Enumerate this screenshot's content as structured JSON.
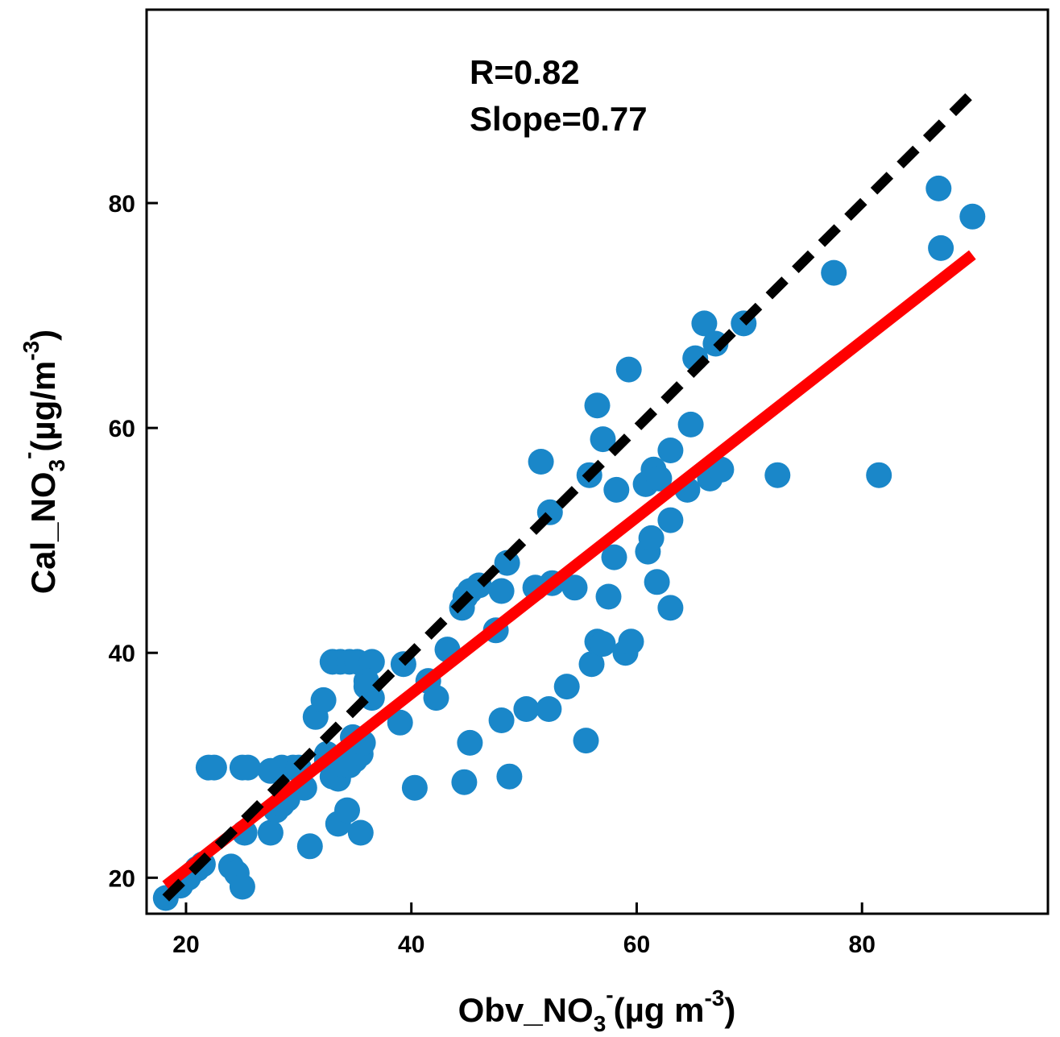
{
  "chart_data": {
    "type": "scatter",
    "xlim": [
      16.5,
      96.5
    ],
    "ylim": [
      16.8,
      97.2
    ],
    "x_ticks": [
      20,
      40,
      60,
      80
    ],
    "y_ticks": [
      20,
      40,
      60,
      80
    ],
    "x_tick_labels": [
      "20",
      "40",
      "60",
      "80"
    ],
    "y_tick_labels": [
      "20",
      "40",
      "60",
      "80"
    ],
    "xlabel": {
      "main": "Obv_NO",
      "sub": "3",
      "sup": "-",
      "tail_open": "(µg m",
      "tail_sup": "-3",
      "tail_close": ")"
    },
    "ylabel": {
      "main": "Cal_NO",
      "sub": "3",
      "sup": "-",
      "tail_open": "(µg/m",
      "tail_sup": "-3",
      "tail_close": ")"
    },
    "annotations": [
      "R=0.82",
      "Slope=0.77"
    ],
    "grid": false,
    "legend": "none",
    "colors": {
      "points": "#1a87c9",
      "fit": "#ff0000",
      "one_to_one": "#000000"
    },
    "series": [
      {
        "kind": "points",
        "points": [
          [
            18.2,
            18.2
          ],
          [
            19.5,
            19.3
          ],
          [
            20.2,
            20.0
          ],
          [
            21.0,
            20.8
          ],
          [
            21.5,
            21.2
          ],
          [
            22.0,
            29.8
          ],
          [
            22.5,
            29.8
          ],
          [
            24.0,
            21.0
          ],
          [
            24.5,
            20.4
          ],
          [
            25.0,
            19.2
          ],
          [
            25.0,
            29.8
          ],
          [
            25.5,
            29.8
          ],
          [
            25.2,
            24.0
          ],
          [
            27.5,
            24.0
          ],
          [
            27.5,
            29.5
          ],
          [
            28.5,
            29.8
          ],
          [
            29.5,
            29.8
          ],
          [
            30.0,
            29.8
          ],
          [
            28.0,
            26.0
          ],
          [
            28.5,
            26.5
          ],
          [
            29.0,
            27.0
          ],
          [
            30.5,
            28.0
          ],
          [
            31.0,
            22.8
          ],
          [
            31.5,
            34.3
          ],
          [
            32.2,
            35.8
          ],
          [
            32.5,
            30.5
          ],
          [
            32.5,
            31.0
          ],
          [
            33.0,
            29.0
          ],
          [
            33.5,
            28.8
          ],
          [
            34.0,
            30.0
          ],
          [
            34.5,
            30.0
          ],
          [
            35.0,
            30.5
          ],
          [
            35.5,
            31.0
          ],
          [
            35.7,
            32.0
          ],
          [
            34.8,
            32.5
          ],
          [
            33.5,
            24.8
          ],
          [
            34.3,
            26.0
          ],
          [
            35.5,
            24.0
          ],
          [
            33.0,
            39.2
          ],
          [
            33.7,
            39.2
          ],
          [
            34.5,
            39.2
          ],
          [
            35.2,
            39.2
          ],
          [
            36.5,
            39.2
          ],
          [
            36.0,
            37.5
          ],
          [
            36.5,
            36.0
          ],
          [
            36.0,
            37.0
          ],
          [
            39.0,
            33.8
          ],
          [
            39.3,
            39.0
          ],
          [
            40.3,
            28.0
          ],
          [
            41.5,
            37.5
          ],
          [
            42.2,
            36.0
          ],
          [
            43.2,
            40.3
          ],
          [
            44.5,
            44.0
          ],
          [
            44.8,
            45.0
          ],
          [
            45.2,
            45.5
          ],
          [
            46.0,
            46.0
          ],
          [
            44.7,
            28.5
          ],
          [
            45.2,
            32.0
          ],
          [
            47.5,
            42.0
          ],
          [
            48.0,
            45.5
          ],
          [
            48.5,
            48.0
          ],
          [
            48.0,
            34.0
          ],
          [
            48.7,
            29.0
          ],
          [
            50.2,
            35.0
          ],
          [
            51.0,
            45.8
          ],
          [
            51.5,
            57.0
          ],
          [
            52.2,
            35.0
          ],
          [
            52.3,
            52.5
          ],
          [
            52.5,
            46.2
          ],
          [
            53.8,
            37.0
          ],
          [
            54.5,
            45.8
          ],
          [
            55.5,
            32.2
          ],
          [
            55.8,
            55.8
          ],
          [
            56.0,
            39.0
          ],
          [
            56.5,
            62.0
          ],
          [
            56.5,
            41.0
          ],
          [
            57.0,
            59.0
          ],
          [
            57.5,
            45.0
          ],
          [
            57.0,
            40.8
          ],
          [
            58.2,
            54.5
          ],
          [
            58.0,
            48.5
          ],
          [
            59.3,
            65.2
          ],
          [
            59.0,
            40.0
          ],
          [
            59.5,
            41.0
          ],
          [
            60.8,
            55.0
          ],
          [
            61.0,
            49.0
          ],
          [
            61.3,
            50.2
          ],
          [
            61.5,
            56.3
          ],
          [
            61.8,
            46.3
          ],
          [
            62.0,
            55.5
          ],
          [
            63.0,
            58.0
          ],
          [
            63.0,
            51.8
          ],
          [
            63.0,
            44.0
          ],
          [
            64.5,
            54.5
          ],
          [
            64.8,
            60.3
          ],
          [
            65.2,
            66.2
          ],
          [
            66.0,
            69.3
          ],
          [
            66.5,
            55.5
          ],
          [
            67.0,
            67.5
          ],
          [
            67.5,
            56.3
          ],
          [
            69.5,
            69.3
          ],
          [
            72.5,
            55.8
          ],
          [
            77.5,
            73.8
          ],
          [
            81.5,
            55.8
          ],
          [
            86.8,
            81.3
          ],
          [
            87.0,
            76.0
          ],
          [
            89.8,
            78.8
          ]
        ]
      },
      {
        "kind": "line",
        "name": "",
        "style": "solid",
        "x": [
          18.2,
          89.8
        ],
        "y": [
          19.3,
          75.4
        ]
      },
      {
        "kind": "line",
        "name": "",
        "style": "dashed",
        "x": [
          18.2,
          89.8
        ],
        "y": [
          18.2,
          89.8
        ]
      }
    ]
  }
}
